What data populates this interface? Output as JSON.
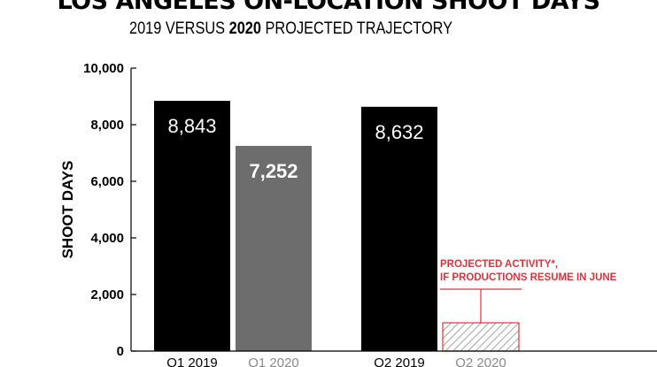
{
  "chart_data": {
    "type": "bar",
    "title": "LOS ANGELES ON-LOCATION SHOOT DAYS",
    "subtitle": {
      "prefix": "2019 VERSUS ",
      "emphasis": "2020",
      "suffix": " PROJECTED TRAJECTORY"
    },
    "ylabel": "SHOOT DAYS",
    "xlabel": "",
    "ylim": [
      0,
      10000
    ],
    "y_ticks": [
      "0",
      "2,000",
      "4,000",
      "6,000",
      "8,000",
      "10,000"
    ],
    "y_tick_values": [
      0,
      2000,
      4000,
      6000,
      8000,
      10000
    ],
    "grid": false,
    "categories": [
      "Q1 2019",
      "Q1 2020",
      "Q2 2019",
      "Q2 2020"
    ],
    "values": [
      8843,
      7252,
      8632,
      1000
    ],
    "data_labels": [
      "8,843",
      "7,252",
      "8,632",
      ""
    ],
    "bar_colors": [
      "#000000",
      "#6d6d6d",
      "#000000",
      "hatched"
    ],
    "x_label_colors": [
      "#000000",
      "#8a8a8a",
      "#000000",
      "#8a8a8a"
    ],
    "annotation": {
      "lines": [
        "PROJECTED ACTIVITY*,",
        "IF PRODUCTIONS RESUME IN JUNE"
      ],
      "target": "Q2 2020",
      "color": "#e0323c"
    }
  }
}
